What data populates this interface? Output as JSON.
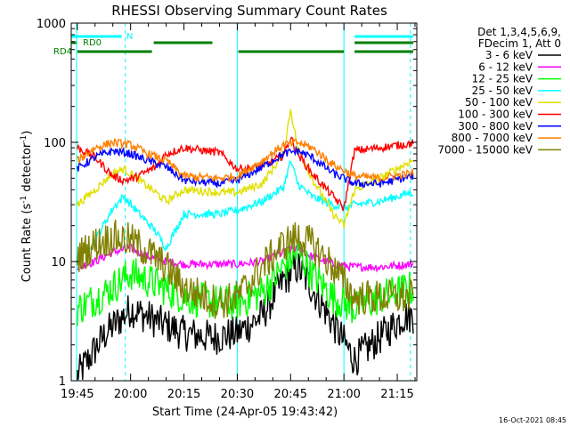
{
  "chart_data": {
    "type": "line",
    "title": "RHESSI Observing Summary Count Rates",
    "xlabel": "Start Time (24-Apr-05 19:43:42)",
    "ylabel_main": "Count Rate (s",
    "ylabel_sup1": "-1",
    "ylabel_mid": " detector",
    "ylabel_sup2": "-1",
    "ylabel_end": ")",
    "y_scale": "log",
    "ylim": [
      1,
      1000
    ],
    "xlim_minutes": [
      -1.7,
      95.5
    ],
    "x_ticks": [
      {
        "label": "19:45",
        "minutes": 0
      },
      {
        "label": "20:00",
        "minutes": 15
      },
      {
        "label": "20:15",
        "minutes": 30
      },
      {
        "label": "20:30",
        "minutes": 45
      },
      {
        "label": "20:45",
        "minutes": 60
      },
      {
        "label": "21:00",
        "minutes": 75
      },
      {
        "label": "21:15",
        "minutes": 90
      }
    ],
    "y_ticks": [
      {
        "label": "1",
        "value": 1
      },
      {
        "label": "10",
        "value": 10
      },
      {
        "label": "100",
        "value": 100
      },
      {
        "label": "1000",
        "value": 1000
      }
    ],
    "footer": "16-Oct-2021 08:45",
    "legend_placement": "top-right, outside plot",
    "legend_header_1": "Det 1,3,4,5,6,9,",
    "legend_header_2": "FDecim 1, Att 0",
    "flags": [
      {
        "label": "N",
        "color": "#00ffff",
        "segments_minutes": [
          [
            -1.7,
            12.5
          ],
          [
            78,
            94.5
          ]
        ]
      },
      {
        "label": "RD0",
        "color": "#008000",
        "segments_minutes": [
          [
            -1.7,
            -0.3
          ],
          [
            21.5,
            38
          ],
          [
            78,
            94.5
          ]
        ]
      },
      {
        "label": "RD4",
        "color": "#008000",
        "segments_minutes": [
          [
            0,
            21
          ],
          [
            45.3,
            75
          ],
          [
            78,
            94.5
          ]
        ]
      }
    ],
    "night_markers_minutes": [
      -0.2,
      13.5,
      45,
      75,
      93.7
    ],
    "series": [
      {
        "name": "3 - 6 keV",
        "color": "#000000",
        "x": [
          0,
          8,
          15,
          22,
          30,
          38,
          45,
          52,
          58,
          62,
          66,
          72,
          78,
          85,
          92
        ],
        "y": [
          1.1,
          2.5,
          4,
          3.2,
          2.5,
          2.3,
          2.5,
          3.5,
          7,
          9,
          6,
          3,
          1.5,
          2.3,
          3.5
        ]
      },
      {
        "name": "6 - 12 keV",
        "color": "#ff00ff",
        "x": [
          0,
          5,
          10,
          15,
          20,
          25,
          30,
          40,
          45,
          52,
          58,
          62,
          66,
          72,
          78,
          85,
          94
        ],
        "y": [
          9,
          10,
          12,
          13,
          11,
          10,
          9.5,
          9.5,
          9.5,
          10,
          12,
          13,
          11,
          9.5,
          9,
          9,
          9.5
        ]
      },
      {
        "name": "12 - 25 keV",
        "color": "#00ff00",
        "x": [
          0,
          8,
          15,
          22,
          30,
          40,
          45,
          52,
          58,
          62,
          66,
          72,
          78,
          85,
          94
        ],
        "y": [
          4,
          5.5,
          8,
          6.5,
          5,
          4.5,
          4.5,
          5.5,
          9,
          12,
          8,
          5,
          4,
          5,
          6
        ]
      },
      {
        "name": "25 - 50 keV",
        "color": "#00ffff",
        "x": [
          0,
          5,
          10,
          13,
          16,
          22,
          25,
          30,
          40,
          45,
          52,
          58,
          60,
          62,
          66,
          72,
          75,
          78,
          85,
          94
        ],
        "y": [
          11,
          15,
          28,
          35,
          28,
          18,
          13,
          25,
          25,
          27,
          32,
          42,
          70,
          45,
          35,
          30,
          28,
          30,
          32,
          38
        ]
      },
      {
        "name": "50 - 100 keV",
        "color": "#e0e000",
        "x": [
          0,
          5,
          10,
          13,
          16,
          22,
          25,
          30,
          40,
          45,
          52,
          58,
          60,
          62,
          66,
          72,
          75,
          78,
          85,
          94
        ],
        "y": [
          30,
          40,
          55,
          60,
          52,
          38,
          32,
          40,
          38,
          38,
          45,
          80,
          190,
          90,
          50,
          25,
          20,
          40,
          50,
          70
        ]
      },
      {
        "name": "100 - 300 keV",
        "color": "#ff0000",
        "x": [
          0,
          5,
          10,
          13,
          16,
          22,
          25,
          30,
          40,
          45,
          52,
          58,
          60,
          62,
          66,
          72,
          75,
          78,
          85,
          94
        ],
        "y": [
          90,
          75,
          52,
          48,
          50,
          62,
          80,
          90,
          82,
          60,
          62,
          78,
          110,
          80,
          55,
          35,
          28,
          85,
          90,
          98
        ]
      },
      {
        "name": "300 - 800 keV",
        "color": "#0000ff",
        "x": [
          0,
          5,
          10,
          15,
          20,
          25,
          30,
          40,
          45,
          52,
          58,
          62,
          66,
          72,
          78,
          85,
          94
        ],
        "y": [
          60,
          75,
          85,
          80,
          70,
          62,
          48,
          45,
          48,
          62,
          80,
          85,
          75,
          55,
          45,
          45,
          52
        ]
      },
      {
        "name": "800 - 7000 keV",
        "color": "#ff8000",
        "x": [
          0,
          5,
          10,
          15,
          20,
          25,
          30,
          40,
          45,
          52,
          58,
          62,
          66,
          72,
          78,
          85,
          94
        ],
        "y": [
          70,
          90,
          100,
          95,
          80,
          70,
          52,
          50,
          52,
          70,
          95,
          100,
          90,
          65,
          52,
          50,
          55
        ]
      },
      {
        "name": "7000 - 15000 keV",
        "color": "#808000",
        "x": [
          0,
          5,
          10,
          15,
          20,
          25,
          30,
          40,
          45,
          52,
          58,
          62,
          66,
          72,
          78,
          85,
          94
        ],
        "y": [
          11,
          14,
          16,
          15,
          12,
          9,
          6,
          4.5,
          5,
          9,
          14,
          16,
          14,
          9,
          5,
          5,
          5
        ]
      }
    ]
  }
}
